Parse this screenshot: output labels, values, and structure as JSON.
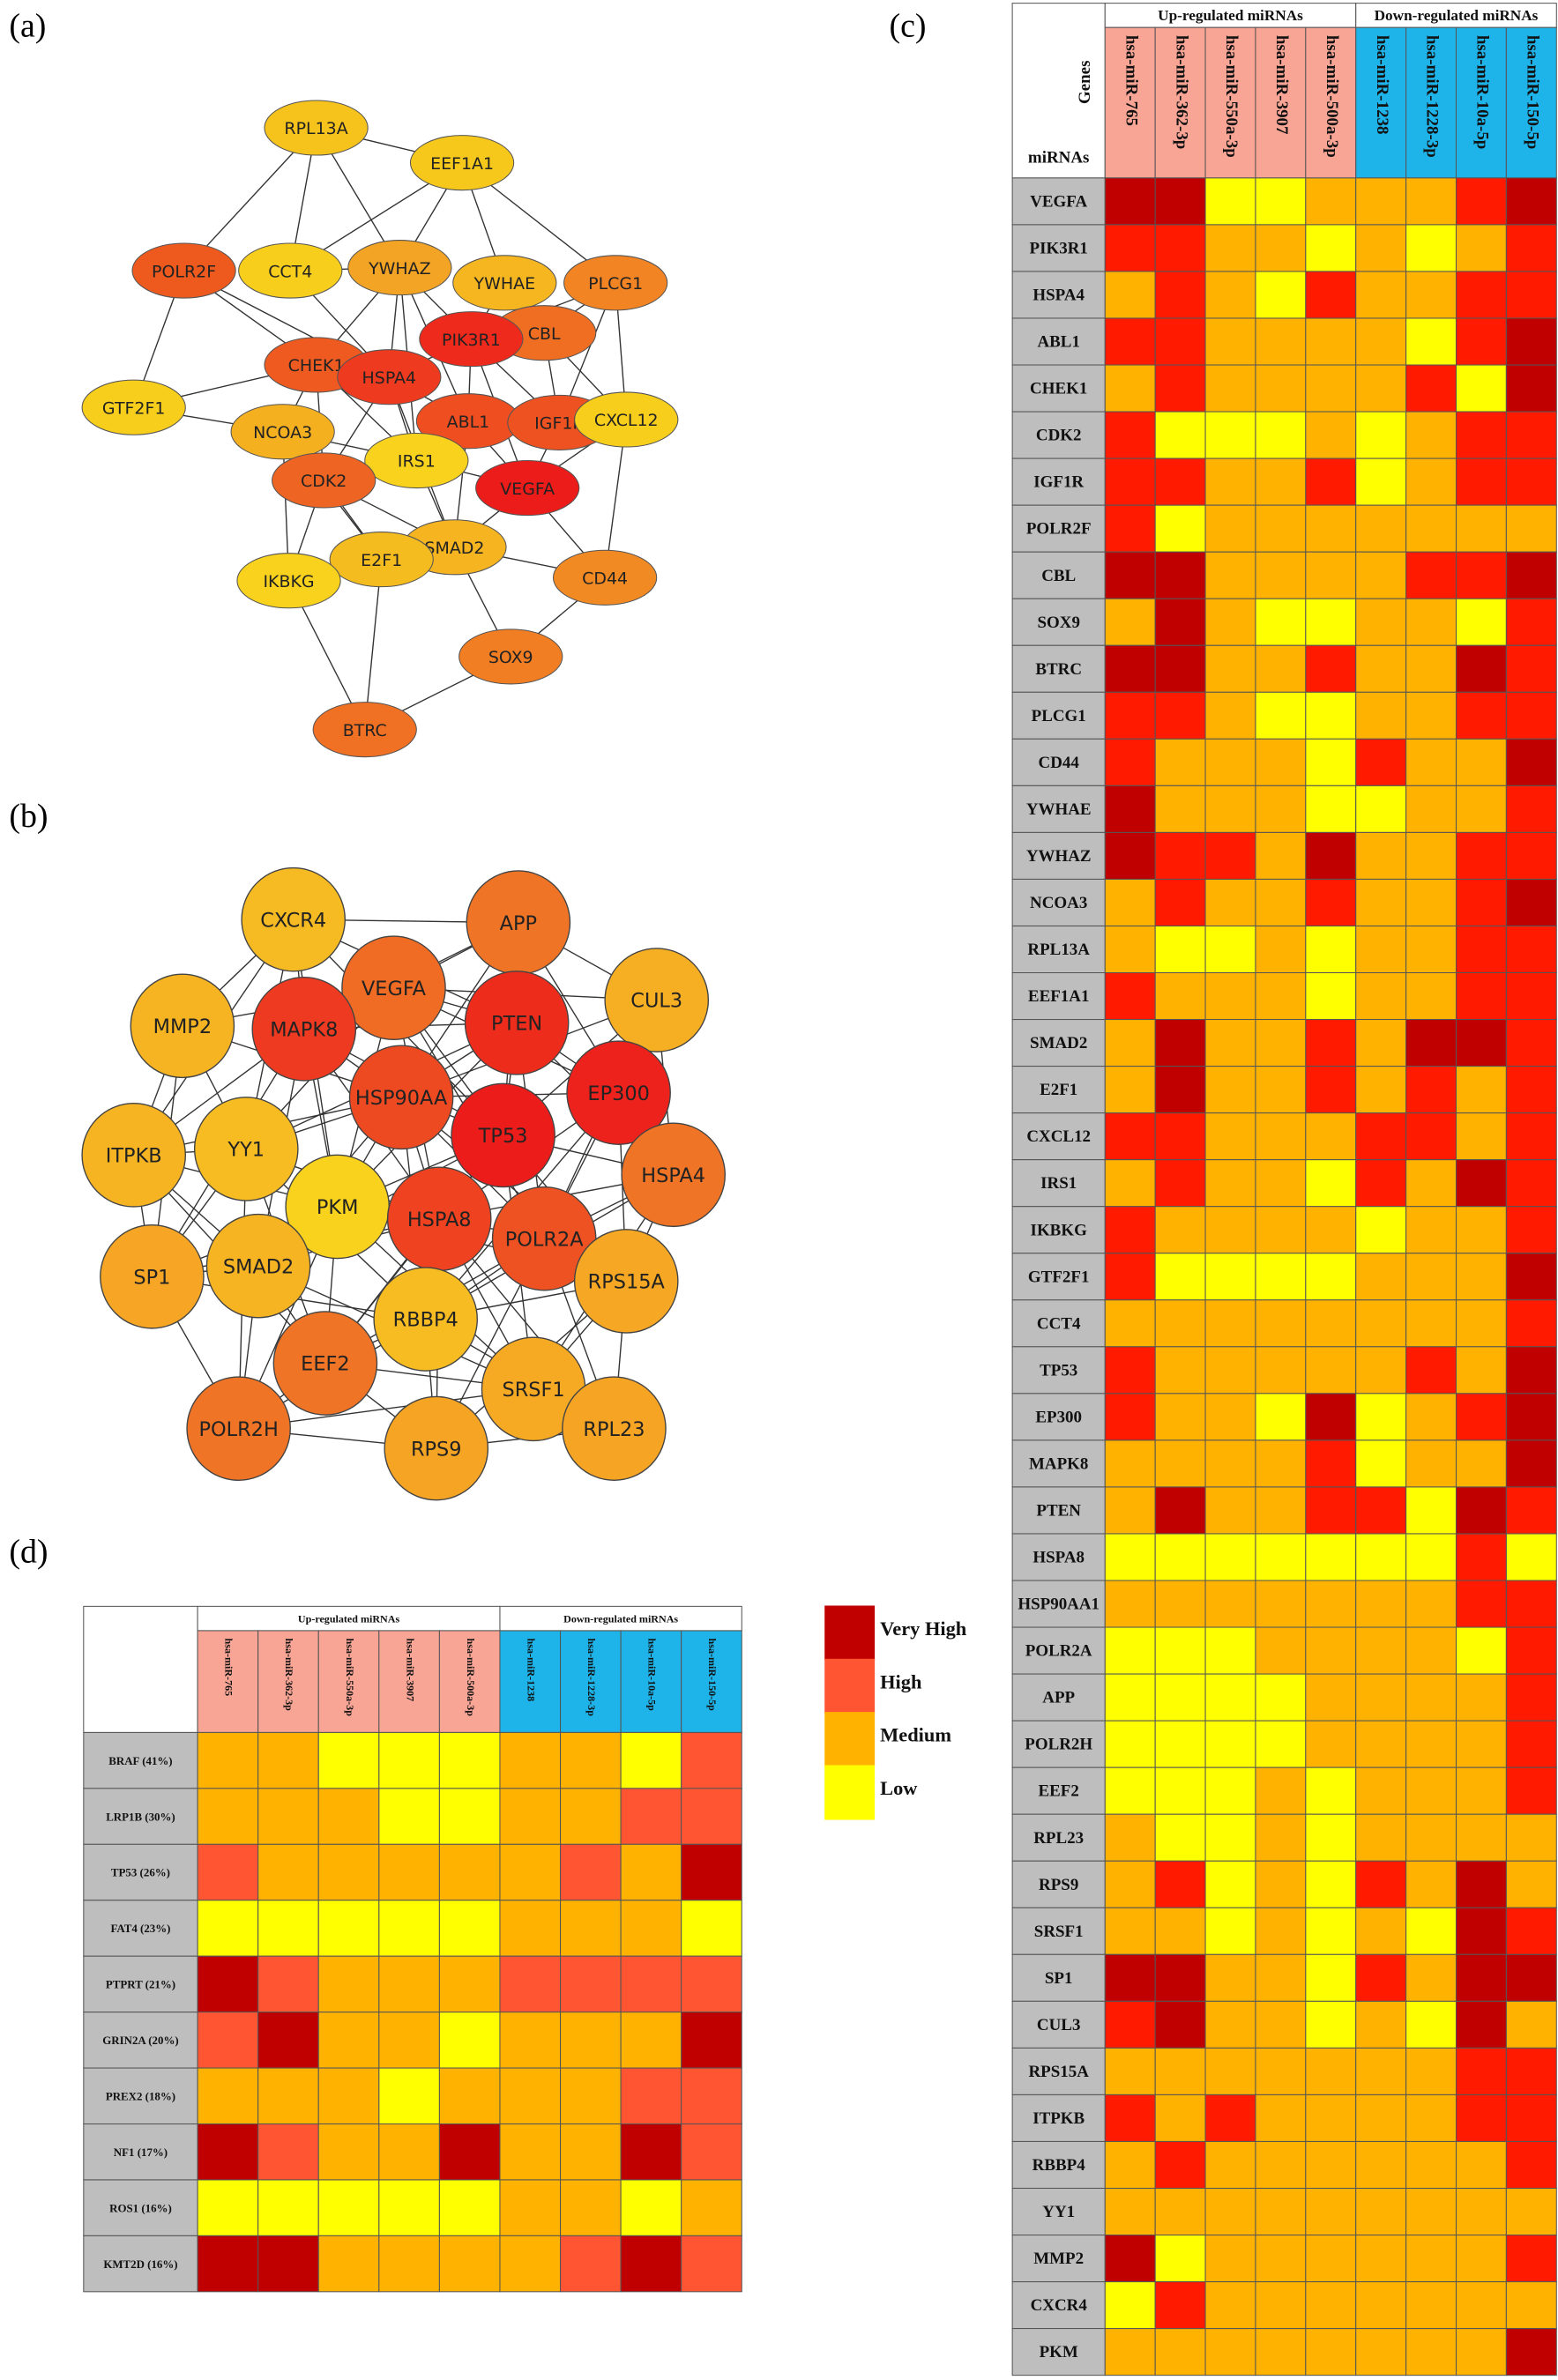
{
  "panel_a": {
    "tag": "(a)",
    "nodes": [
      {
        "label": "RPL13A",
        "color": "#F6C21C"
      },
      {
        "label": "EEF1A1",
        "color": "#F7C81C"
      },
      {
        "label": "POLR2F",
        "color": "#EE5A1E"
      },
      {
        "label": "CCT4",
        "color": "#F8CE1C"
      },
      {
        "label": "YWHAZ",
        "color": "#F3A424"
      },
      {
        "label": "YWHAE",
        "color": "#F5B620"
      },
      {
        "label": "PLCG1",
        "color": "#F28424"
      },
      {
        "label": "CBL",
        "color": "#F06E22"
      },
      {
        "label": "PIK3R1",
        "color": "#EE2A1C"
      },
      {
        "label": "CHEK1",
        "color": "#EE5A20"
      },
      {
        "label": "HSPA4",
        "color": "#EE3A1E"
      },
      {
        "label": "GTF2F1",
        "color": "#F8CE1C"
      },
      {
        "label": "NCOA3",
        "color": "#F5B020"
      },
      {
        "label": "ABL1",
        "color": "#EE4E20"
      },
      {
        "label": "IGF1R",
        "color": "#EE5220"
      },
      {
        "label": "CXCL12",
        "color": "#F8CE1C"
      },
      {
        "label": "IRS1",
        "color": "#F8D21C"
      },
      {
        "label": "CDK2",
        "color": "#EE6422"
      },
      {
        "label": "VEGFA",
        "color": "#EC1C1A"
      },
      {
        "label": "SMAD2",
        "color": "#F5B420"
      },
      {
        "label": "E2F1",
        "color": "#F5BC20"
      },
      {
        "label": "IKBKG",
        "color": "#F8D21C"
      },
      {
        "label": "CD44",
        "color": "#F28A24"
      },
      {
        "label": "SOX9",
        "color": "#F27E24"
      },
      {
        "label": "BTRC",
        "color": "#F07024"
      }
    ]
  },
  "panel_b": {
    "tag": "(b)",
    "nodes": [
      {
        "label": "CXCR4",
        "color": "#F6BA22"
      },
      {
        "label": "APP",
        "color": "#F07426"
      },
      {
        "label": "CUL3",
        "color": "#F6AE22"
      },
      {
        "label": "MMP2",
        "color": "#F6B422"
      },
      {
        "label": "VEGFA",
        "color": "#F06C24"
      },
      {
        "label": "MAPK8",
        "color": "#EE3A20"
      },
      {
        "label": "PTEN",
        "color": "#EE2C1C"
      },
      {
        "label": "EP300",
        "color": "#EE221C"
      },
      {
        "label": "HSP90AA",
        "color": "#EE4A22"
      },
      {
        "label": "TP53",
        "color": "#EC1C1A"
      },
      {
        "label": "ITPKB",
        "color": "#F6B422"
      },
      {
        "label": "YY1",
        "color": "#F6BC22"
      },
      {
        "label": "HSPA4",
        "color": "#F07426"
      },
      {
        "label": "PKM",
        "color": "#F8D21C"
      },
      {
        "label": "HSPA8",
        "color": "#EE4220"
      },
      {
        "label": "POLR2A",
        "color": "#EE5222"
      },
      {
        "label": "SP1",
        "color": "#F6A624"
      },
      {
        "label": "SMAD2",
        "color": "#F6B422"
      },
      {
        "label": "RPS15A",
        "color": "#F6A824"
      },
      {
        "label": "RBBP4",
        "color": "#F6BC22"
      },
      {
        "label": "EEF2",
        "color": "#F07426"
      },
      {
        "label": "SRSF1",
        "color": "#F6AA24"
      },
      {
        "label": "POLR2H",
        "color": "#F07426"
      },
      {
        "label": "RPS9",
        "color": "#F6A424"
      },
      {
        "label": "RPL23",
        "color": "#F6A424"
      }
    ]
  },
  "panel_c": {
    "tag": "(c)",
    "groups": [
      {
        "label": "Up-regulated miRNAs",
        "color": "#F9A596",
        "span": 5
      },
      {
        "label": "Down-regulated miRNAs",
        "color": "#1EB4EA",
        "span": 4
      }
    ],
    "corner": {
      "top": "Genes",
      "bottom": "miRNAs"
    },
    "colors": [
      "#C00000",
      "#FF1A00",
      "#FFB300",
      "#FFFF00"
    ],
    "columns": [
      "hsa-miR-765",
      "hsa-miR-362-3p",
      "hsa-miR-550a-3p",
      "hsa-miR-3907",
      "hsa-miR-500a-3p",
      "hsa-miR-1238",
      "hsa-miR-1228-3p",
      "hsa-miR-10a-5p",
      "hsa-miR-150-5p"
    ],
    "rows": [
      {
        "label": "VEGFA",
        "cells": [
          0,
          0,
          3,
          3,
          2,
          2,
          2,
          1,
          0
        ]
      },
      {
        "label": "PIK3R1",
        "cells": [
          1,
          1,
          2,
          2,
          3,
          2,
          3,
          2,
          1
        ]
      },
      {
        "label": "HSPA4",
        "cells": [
          2,
          1,
          2,
          3,
          1,
          2,
          2,
          1,
          1
        ]
      },
      {
        "label": "ABL1",
        "cells": [
          1,
          1,
          2,
          2,
          2,
          2,
          3,
          1,
          0
        ]
      },
      {
        "label": "CHEK1",
        "cells": [
          2,
          1,
          2,
          2,
          2,
          2,
          1,
          3,
          0
        ]
      },
      {
        "label": "CDK2",
        "cells": [
          1,
          3,
          3,
          3,
          2,
          3,
          2,
          1,
          1
        ]
      },
      {
        "label": "IGF1R",
        "cells": [
          1,
          1,
          2,
          2,
          1,
          3,
          2,
          1,
          1
        ]
      },
      {
        "label": "POLR2F",
        "cells": [
          1,
          3,
          2,
          2,
          2,
          2,
          2,
          2,
          2
        ]
      },
      {
        "label": "CBL",
        "cells": [
          0,
          0,
          2,
          2,
          2,
          2,
          1,
          1,
          0
        ]
      },
      {
        "label": "SOX9",
        "cells": [
          2,
          0,
          2,
          3,
          3,
          2,
          2,
          3,
          1
        ]
      },
      {
        "label": "BTRC",
        "cells": [
          0,
          0,
          2,
          2,
          1,
          2,
          2,
          0,
          1
        ]
      },
      {
        "label": "PLCG1",
        "cells": [
          1,
          1,
          2,
          3,
          3,
          2,
          2,
          1,
          1
        ]
      },
      {
        "label": "CD44",
        "cells": [
          1,
          2,
          2,
          2,
          3,
          1,
          2,
          2,
          0
        ]
      },
      {
        "label": "YWHAE",
        "cells": [
          0,
          2,
          2,
          2,
          3,
          3,
          2,
          2,
          1
        ]
      },
      {
        "label": "YWHAZ",
        "cells": [
          0,
          1,
          1,
          2,
          0,
          2,
          2,
          1,
          1
        ]
      },
      {
        "label": "NCOA3",
        "cells": [
          2,
          1,
          2,
          2,
          1,
          2,
          2,
          1,
          0
        ]
      },
      {
        "label": "RPL13A",
        "cells": [
          2,
          3,
          3,
          2,
          3,
          2,
          2,
          1,
          1
        ]
      },
      {
        "label": "EEF1A1",
        "cells": [
          1,
          2,
          2,
          2,
          3,
          2,
          2,
          1,
          1
        ]
      },
      {
        "label": "SMAD2",
        "cells": [
          2,
          0,
          2,
          2,
          1,
          2,
          0,
          0,
          1
        ]
      },
      {
        "label": "E2F1",
        "cells": [
          2,
          0,
          2,
          2,
          1,
          2,
          1,
          2,
          1
        ]
      },
      {
        "label": "CXCL12",
        "cells": [
          1,
          1,
          2,
          2,
          2,
          1,
          1,
          2,
          1
        ]
      },
      {
        "label": "IRS1",
        "cells": [
          2,
          1,
          2,
          2,
          3,
          1,
          2,
          0,
          1
        ]
      },
      {
        "label": "IKBKG",
        "cells": [
          1,
          2,
          2,
          2,
          2,
          3,
          2,
          2,
          1
        ]
      },
      {
        "label": "GTF2F1",
        "cells": [
          1,
          3,
          3,
          3,
          3,
          2,
          2,
          2,
          0
        ]
      },
      {
        "label": "CCT4",
        "cells": [
          2,
          2,
          2,
          2,
          2,
          2,
          2,
          2,
          1
        ]
      },
      {
        "label": "TP53",
        "cells": [
          1,
          2,
          2,
          2,
          2,
          2,
          1,
          2,
          0
        ]
      },
      {
        "label": "EP300",
        "cells": [
          1,
          2,
          2,
          3,
          0,
          3,
          2,
          1,
          0
        ]
      },
      {
        "label": "MAPK8",
        "cells": [
          2,
          2,
          2,
          2,
          1,
          3,
          2,
          2,
          0
        ]
      },
      {
        "label": "PTEN",
        "cells": [
          2,
          0,
          2,
          2,
          1,
          1,
          3,
          0,
          1
        ]
      },
      {
        "label": "HSPA8",
        "cells": [
          3,
          3,
          3,
          3,
          3,
          3,
          3,
          1,
          3
        ]
      },
      {
        "label": "HSP90AA1",
        "cells": [
          2,
          2,
          2,
          2,
          2,
          2,
          2,
          1,
          1
        ]
      },
      {
        "label": "POLR2A",
        "cells": [
          3,
          3,
          3,
          2,
          2,
          2,
          2,
          3,
          1
        ]
      },
      {
        "label": "APP",
        "cells": [
          3,
          3,
          3,
          3,
          2,
          2,
          2,
          2,
          1
        ]
      },
      {
        "label": "POLR2H",
        "cells": [
          3,
          3,
          3,
          3,
          2,
          2,
          2,
          2,
          1
        ]
      },
      {
        "label": "EEF2",
        "cells": [
          3,
          3,
          3,
          2,
          3,
          2,
          2,
          2,
          1
        ]
      },
      {
        "label": "RPL23",
        "cells": [
          2,
          3,
          3,
          2,
          3,
          2,
          2,
          2,
          2
        ]
      },
      {
        "label": "RPS9",
        "cells": [
          2,
          1,
          3,
          2,
          3,
          1,
          2,
          0,
          2
        ]
      },
      {
        "label": "SRSF1",
        "cells": [
          2,
          2,
          3,
          2,
          3,
          2,
          3,
          0,
          1
        ]
      },
      {
        "label": "SP1",
        "cells": [
          0,
          0,
          2,
          2,
          3,
          1,
          2,
          0,
          0
        ]
      },
      {
        "label": "CUL3",
        "cells": [
          1,
          0,
          2,
          2,
          3,
          2,
          3,
          0,
          2
        ]
      },
      {
        "label": "RPS15A",
        "cells": [
          2,
          2,
          2,
          2,
          2,
          2,
          2,
          1,
          1
        ]
      },
      {
        "label": "ITPKB",
        "cells": [
          1,
          2,
          1,
          2,
          2,
          2,
          2,
          1,
          1
        ]
      },
      {
        "label": "RBBP4",
        "cells": [
          2,
          1,
          2,
          2,
          2,
          2,
          2,
          2,
          1
        ]
      },
      {
        "label": "YY1",
        "cells": [
          2,
          2,
          2,
          2,
          2,
          2,
          2,
          2,
          2
        ]
      },
      {
        "label": "MMP2",
        "cells": [
          0,
          3,
          2,
          2,
          2,
          2,
          2,
          2,
          1
        ]
      },
      {
        "label": "CXCR4",
        "cells": [
          3,
          1,
          2,
          2,
          2,
          2,
          2,
          2,
          2
        ]
      },
      {
        "label": "PKM",
        "cells": [
          2,
          2,
          2,
          2,
          2,
          2,
          2,
          2,
          0
        ]
      }
    ]
  },
  "panel_d": {
    "tag": "(d)",
    "groups": [
      {
        "label": "Up-regulated miRNAs",
        "color": "#F9A596",
        "span": 5
      },
      {
        "label": "Down-regulated miRNAs",
        "color": "#1EB4EA",
        "span": 4
      }
    ],
    "columns": [
      "hsa-miR-765",
      "hsa-miR-362-3p",
      "hsa-miR-550a-3p",
      "hsa-miR-3907",
      "hsa-miR-500a-3p",
      "hsa-miR-1238",
      "hsa-miR-1228-3p",
      "hsa-miR-10a-5p",
      "hsa-miR-150-5p"
    ],
    "rows": [
      {
        "label": "BRAF (41%)",
        "cells": [
          2,
          2,
          3,
          3,
          3,
          2,
          2,
          3,
          1
        ]
      },
      {
        "label": "LRP1B (30%)",
        "cells": [
          2,
          2,
          2,
          3,
          3,
          2,
          2,
          1,
          1
        ]
      },
      {
        "label": "TP53 (26%)",
        "cells": [
          1,
          2,
          2,
          2,
          2,
          2,
          1,
          2,
          0
        ]
      },
      {
        "label": "FAT4 (23%)",
        "cells": [
          3,
          3,
          3,
          3,
          3,
          2,
          2,
          2,
          3
        ]
      },
      {
        "label": "PTPRT (21%)",
        "cells": [
          0,
          1,
          2,
          2,
          2,
          1,
          1,
          1,
          1
        ]
      },
      {
        "label": "GRIN2A (20%)",
        "cells": [
          1,
          0,
          2,
          2,
          3,
          2,
          2,
          2,
          0
        ]
      },
      {
        "label": "PREX2 (18%)",
        "cells": [
          2,
          2,
          2,
          3,
          2,
          2,
          2,
          1,
          1
        ]
      },
      {
        "label": "NF1 (17%)",
        "cells": [
          0,
          1,
          2,
          2,
          0,
          2,
          2,
          0,
          1
        ]
      },
      {
        "label": "ROS1 (16%)",
        "cells": [
          3,
          3,
          3,
          3,
          3,
          2,
          2,
          3,
          2
        ]
      },
      {
        "label": "KMT2D (16%)",
        "cells": [
          0,
          0,
          2,
          2,
          2,
          2,
          1,
          0,
          1
        ]
      }
    ]
  },
  "legend": [
    {
      "label": "Very High",
      "color": "#C00000"
    },
    {
      "label": "High",
      "color": "#FF5533"
    },
    {
      "label": "Medium",
      "color": "#FFB300"
    },
    {
      "label": "Low",
      "color": "#FFFF00"
    }
  ]
}
